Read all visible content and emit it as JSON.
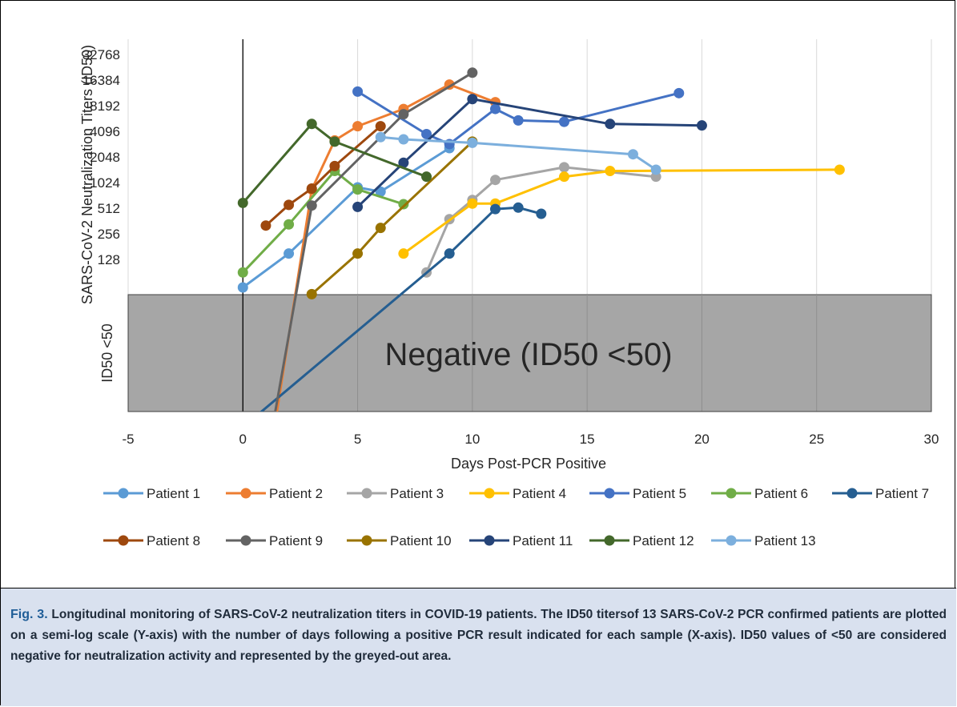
{
  "chart_data": {
    "type": "line",
    "title": "",
    "xlabel": "Days Post-PCR Positive",
    "ylabel": "SARS-CoV-2 Neutralization Titers (ID50)",
    "negative_region_label": "Negative (ID50 <50)",
    "negative_axis_label": "ID50 <50",
    "xlim": [
      -5,
      30
    ],
    "x_ticks": [
      -5,
      0,
      5,
      10,
      15,
      20,
      25,
      30
    ],
    "y_scale": "log2",
    "y_ticks": [
      128,
      256,
      512,
      1024,
      2048,
      4096,
      8192,
      16384,
      32768
    ],
    "ylim": [
      32,
      65536
    ],
    "negative_threshold": 50,
    "grid": "vertical",
    "legend_position": "bottom",
    "series": [
      {
        "name": "Patient 1",
        "color": "#5b9bd5",
        "points": [
          [
            0,
            60
          ],
          [
            2,
            150
          ],
          [
            5,
            900
          ],
          [
            6,
            800
          ],
          [
            9,
            2600
          ]
        ]
      },
      {
        "name": "Patient 2",
        "color": "#ed7d31",
        "points": [
          [
            1.3,
            1
          ],
          [
            3,
            850
          ],
          [
            4,
            3200
          ],
          [
            5,
            4700
          ],
          [
            7,
            7500
          ],
          [
            9,
            14500
          ],
          [
            11,
            9000
          ]
        ]
      },
      {
        "name": "Patient 3",
        "color": "#a5a5a5",
        "points": [
          [
            8,
            90
          ],
          [
            9,
            380
          ],
          [
            10,
            640
          ],
          [
            11,
            1100
          ],
          [
            14,
            1550
          ],
          [
            18,
            1200
          ]
        ]
      },
      {
        "name": "Patient 4",
        "color": "#ffc000",
        "points": [
          [
            7,
            150
          ],
          [
            10,
            580
          ],
          [
            11,
            580
          ],
          [
            14,
            1200
          ],
          [
            16,
            1400
          ],
          [
            26,
            1450
          ]
        ]
      },
      {
        "name": "Patient 5",
        "color": "#4472c4",
        "points": [
          [
            5,
            12000
          ],
          [
            8,
            3800
          ],
          [
            9,
            2900
          ],
          [
            11,
            7500
          ],
          [
            12,
            5500
          ],
          [
            14,
            5300
          ],
          [
            19,
            11500
          ]
        ]
      },
      {
        "name": "Patient 6",
        "color": "#70ad47",
        "points": [
          [
            0,
            90
          ],
          [
            2,
            330
          ],
          [
            4,
            1400
          ],
          [
            5,
            850
          ],
          [
            7,
            570
          ]
        ]
      },
      {
        "name": "Patient 7",
        "color": "#255e91",
        "points": [
          [
            -0.6,
            1
          ],
          [
            9,
            150
          ],
          [
            11,
            500
          ],
          [
            12,
            520
          ],
          [
            13,
            440
          ]
        ]
      },
      {
        "name": "Patient 8",
        "color": "#9e480e",
        "points": [
          [
            1,
            320
          ],
          [
            2,
            560
          ],
          [
            3,
            870
          ],
          [
            4,
            1600
          ],
          [
            6,
            4700
          ]
        ]
      },
      {
        "name": "Patient 9",
        "color": "#636363",
        "points": [
          [
            1.2,
            1
          ],
          [
            3,
            550
          ],
          [
            7,
            6500
          ],
          [
            10,
            20000
          ]
        ]
      },
      {
        "name": "Patient 10",
        "color": "#997300",
        "points": [
          [
            3,
            50
          ],
          [
            5,
            150
          ],
          [
            6,
            300
          ],
          [
            10,
            3100
          ]
        ]
      },
      {
        "name": "Patient 11",
        "color": "#264478",
        "points": [
          [
            5,
            530
          ],
          [
            7,
            1750
          ],
          [
            10,
            9800
          ],
          [
            16,
            5000
          ],
          [
            20,
            4800
          ]
        ]
      },
      {
        "name": "Patient 12",
        "color": "#43682b",
        "points": [
          [
            0,
            590
          ],
          [
            3,
            5000
          ],
          [
            4,
            3100
          ],
          [
            8,
            1200
          ]
        ]
      },
      {
        "name": "Patient 13",
        "color": "#7cafdd",
        "points": [
          [
            6,
            3500
          ],
          [
            7,
            3300
          ],
          [
            10,
            3000
          ],
          [
            17,
            2200
          ],
          [
            18,
            1450
          ]
        ]
      }
    ]
  },
  "caption": {
    "label": "Fig. 3.",
    "text": "Longitudinal monitoring of SARS-CoV-2 neutralization titers in COVID-19 patients. The ID50 titersof 13 SARS-CoV-2 PCR confirmed patients are plotted on a semi-log scale (Y-axis) with the number of days following a positive PCR result indicated for each sample (X-axis). ID50 values of <50 are considered negative for neutralization activity and represented by the greyed-out area."
  }
}
